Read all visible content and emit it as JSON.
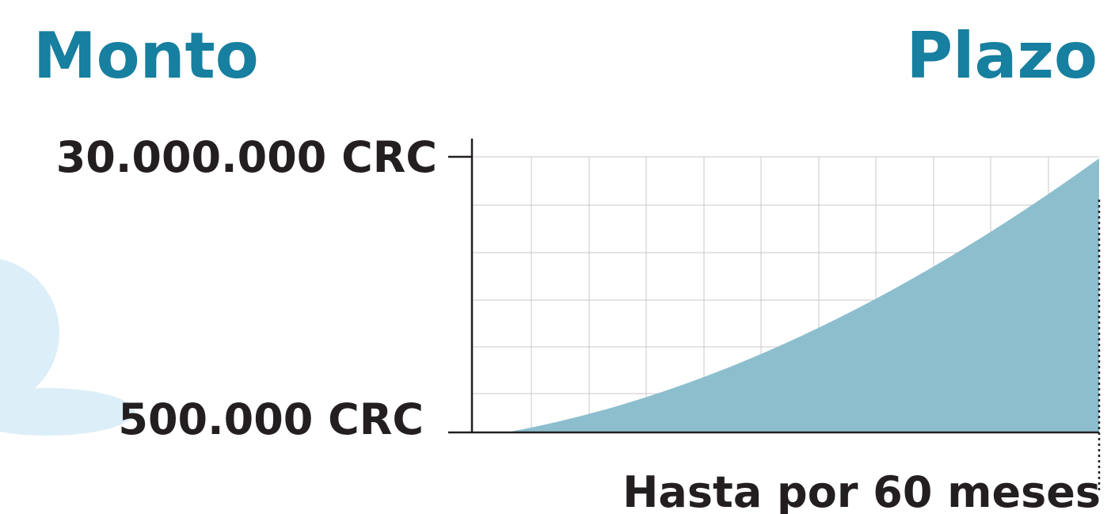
{
  "header": {
    "left_title": "Monto",
    "right_title": "Plazo"
  },
  "axis": {
    "top_label": "30.000.000 CRC",
    "bottom_label": "500.000 CRC",
    "right_label": "Hasta por 60 meses"
  }
}
